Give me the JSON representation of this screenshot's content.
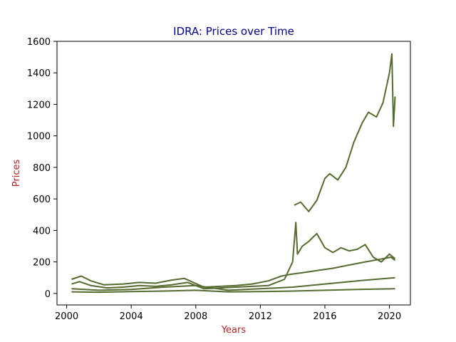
{
  "chart_data": {
    "type": "line",
    "title": "IDRA: Prices over Time",
    "xlabel": "Years",
    "ylabel": "Prices",
    "xlim": [
      1999.4,
      2021.3
    ],
    "ylim": [
      -73,
      1600
    ],
    "xticks": [
      2000,
      2004,
      2008,
      2012,
      2016,
      2020
    ],
    "yticks": [
      0,
      200,
      400,
      600,
      800,
      1000,
      1200,
      1400,
      1600
    ],
    "grid": false,
    "legend": "none",
    "series": [
      {
        "x": [
          2000.3,
          2000.9,
          2001.5,
          2002.3,
          2003.5,
          2004.5,
          2005.5,
          2006.5,
          2007.3,
          2008.5,
          2009.5,
          2010.5,
          2011.5,
          2012.5,
          2013.3,
          2013.8,
          2014.5,
          2015.5,
          2016.5,
          2017.5,
          2018.5,
          2019.3,
          2020.1,
          2020.35
        ],
        "y": [
          90,
          110,
          80,
          55,
          60,
          70,
          65,
          85,
          95,
          40,
          45,
          50,
          60,
          80,
          110,
          120,
          130,
          145,
          160,
          180,
          200,
          215,
          230,
          210
        ]
      },
      {
        "x": [
          2000.3,
          2000.8,
          2001.5,
          2002.5,
          2003.5,
          2004.5,
          2005.5,
          2006.5,
          2007.5,
          2008.5,
          2009.5,
          2010.5,
          2011.5,
          2012.5,
          2013.5,
          2014.0,
          2014.2,
          2014.3,
          2014.6,
          2015.0,
          2015.5,
          2016.0,
          2016.5,
          2017.0,
          2017.5,
          2018.0,
          2018.5,
          2019.0,
          2019.5,
          2020.0,
          2020.35
        ],
        "y": [
          60,
          75,
          50,
          35,
          40,
          50,
          45,
          55,
          70,
          30,
          35,
          40,
          45,
          50,
          90,
          200,
          450,
          250,
          300,
          330,
          380,
          290,
          260,
          290,
          270,
          280,
          310,
          230,
          200,
          250,
          220
        ]
      },
      {
        "x": [
          2014.1,
          2014.5,
          2015.0,
          2015.5,
          2016.0,
          2016.3,
          2016.8,
          2017.3,
          2017.8,
          2018.3,
          2018.7,
          2019.2,
          2019.6,
          2020.0,
          2020.15,
          2020.25,
          2020.35
        ],
        "y": [
          560,
          580,
          520,
          590,
          730,
          760,
          720,
          800,
          960,
          1080,
          1150,
          1120,
          1210,
          1400,
          1520,
          1060,
          1250
        ]
      },
      {
        "x": [
          2000.3,
          2002.0,
          2004.0,
          2006.0,
          2008.0,
          2010.0,
          2012.0,
          2014.0,
          2016.0,
          2018.0,
          2020.35
        ],
        "y": [
          30,
          20,
          25,
          40,
          50,
          20,
          30,
          40,
          60,
          80,
          100
        ]
      },
      {
        "x": [
          2000.3,
          2002.0,
          2004.0,
          2006.0,
          2008.0,
          2010.0,
          2012.0,
          2014.0,
          2016.0,
          2018.0,
          2020.35
        ],
        "y": [
          10,
          8,
          12,
          15,
          20,
          10,
          12,
          15,
          20,
          25,
          30
        ]
      }
    ]
  }
}
